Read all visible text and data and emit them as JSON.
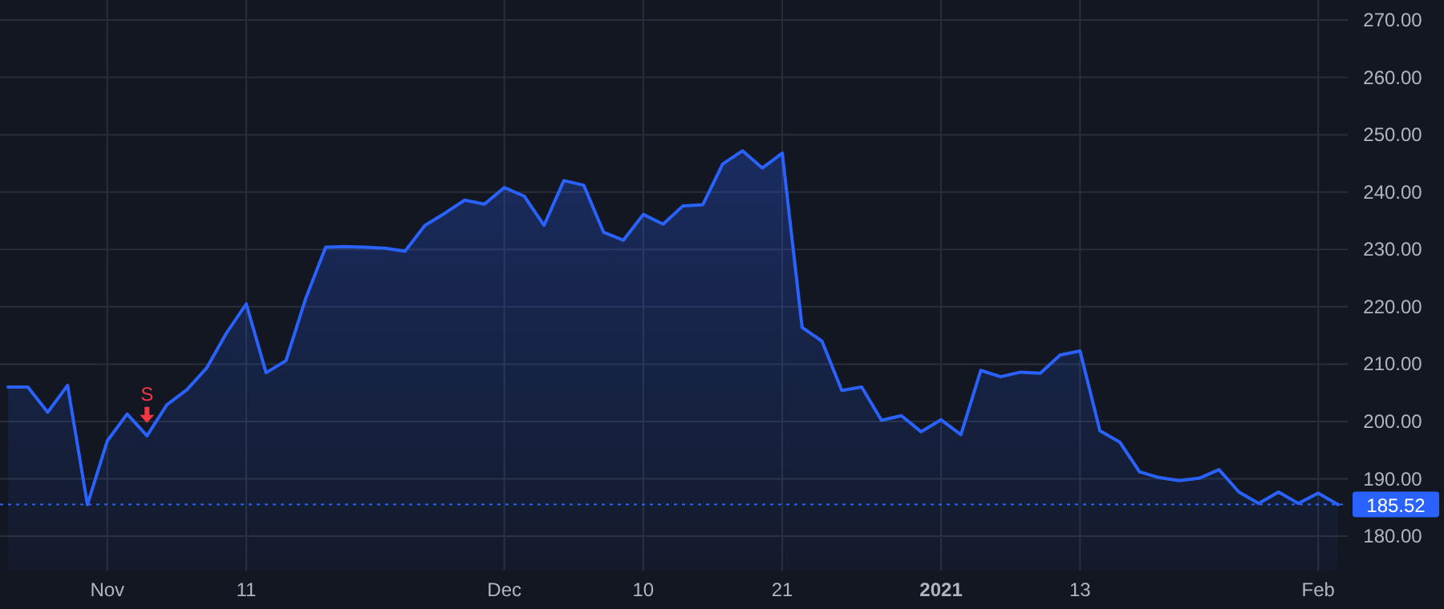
{
  "chart_data": {
    "type": "area",
    "categories": [
      null,
      null,
      null,
      null,
      null,
      "Nov",
      null,
      null,
      null,
      null,
      null,
      null,
      "11",
      null,
      null,
      null,
      null,
      null,
      null,
      null,
      null,
      null,
      null,
      null,
      null,
      "Dec",
      null,
      null,
      null,
      null,
      null,
      null,
      "10",
      null,
      null,
      null,
      null,
      null,
      null,
      "21",
      null,
      null,
      null,
      null,
      null,
      null,
      null,
      "2021",
      null,
      null,
      null,
      null,
      null,
      null,
      "13",
      null,
      null,
      null,
      null,
      null,
      null,
      null,
      null,
      null,
      null,
      null,
      "Feb",
      null
    ],
    "series": [
      {
        "color": "#2962ff",
        "values": [
          206.0,
          206.0,
          201.6,
          206.3,
          185.5,
          196.6,
          201.3,
          197.5,
          202.9,
          205.5,
          209.3,
          215.4,
          220.5,
          208.5,
          210.6,
          221.5,
          230.4,
          230.5,
          230.4,
          230.2,
          229.7,
          234.2,
          236.3,
          238.6,
          237.9,
          240.8,
          239.3,
          234.2,
          242.0,
          241.2,
          233.0,
          231.6,
          236.1,
          234.4,
          237.6,
          237.8,
          244.9,
          247.2,
          244.2,
          246.8,
          216.4,
          214.0,
          205.4,
          206.0,
          200.2,
          201.0,
          198.2,
          200.3,
          197.7,
          208.9,
          207.8,
          208.6,
          208.4,
          211.6,
          212.3,
          198.4,
          196.4,
          191.2,
          190.2,
          189.7,
          190.1,
          191.6,
          187.7,
          185.7,
          187.7,
          185.7,
          187.5,
          185.5
        ]
      }
    ],
    "ylim": [
      174,
      273.5
    ],
    "yticks": [
      {
        "value": 180,
        "label": "180.00"
      },
      {
        "value": 190,
        "label": "190.00"
      },
      {
        "value": 200,
        "label": "200.00"
      },
      {
        "value": 210,
        "label": "210.00"
      },
      {
        "value": 220,
        "label": "220.00"
      },
      {
        "value": 230,
        "label": "230.00"
      },
      {
        "value": 240,
        "label": "240.00"
      },
      {
        "value": 250,
        "label": "250.00"
      },
      {
        "value": 260,
        "label": "260.00"
      },
      {
        "value": 270,
        "label": "270.00"
      }
    ],
    "grid": true,
    "ref_lines": [
      {
        "axis": "y",
        "value": 185.52,
        "label": "185.52",
        "color": "#2962ff",
        "line_style": "dotted"
      }
    ],
    "annotations": [
      {
        "text": "S",
        "y": 197.5
      }
    ]
  }
}
